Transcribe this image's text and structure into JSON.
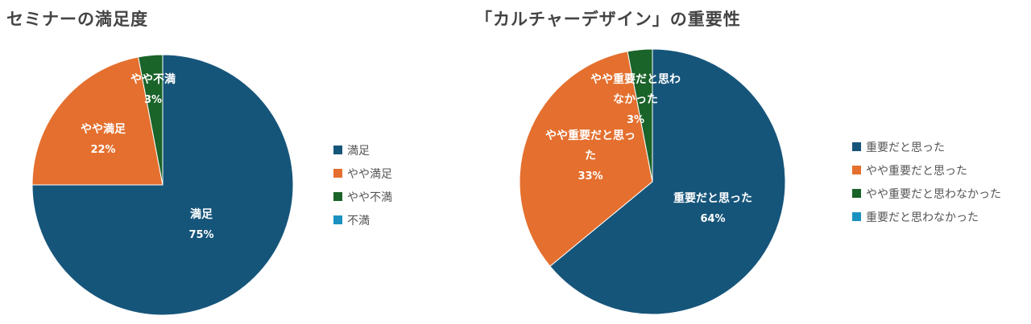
{
  "chart_data": [
    {
      "type": "pie",
      "title": "セミナーの満足度",
      "categories": [
        "満足",
        "やや満足",
        "やや不満",
        "不満"
      ],
      "values": [
        75,
        22,
        3,
        0
      ],
      "value_labels": [
        "75%",
        "22%",
        "3%",
        ""
      ],
      "slice_labels": [
        [
          "満足"
        ],
        [
          "やや満足"
        ],
        [
          "やや不満"
        ],
        []
      ],
      "colors": [
        "#16557a",
        "#e46f2e",
        "#1a6329",
        "#1b91c1"
      ],
      "legend_position": "right"
    },
    {
      "type": "pie",
      "title": "「カルチャーデザイン」の重要性",
      "categories": [
        "重要だと思った",
        "やや重要だと思った",
        "やや重要だと思わなかった",
        "重要だと思わなかった"
      ],
      "values": [
        64,
        33,
        3,
        0
      ],
      "value_labels": [
        "64%",
        "33%",
        "3%",
        ""
      ],
      "slice_labels": [
        [
          "重要だと思った"
        ],
        [
          "やや重要だと思っ",
          "た"
        ],
        [
          "やや重要だと思わ",
          "なかった"
        ],
        []
      ],
      "colors": [
        "#16557a",
        "#e46f2e",
        "#1a6329",
        "#1b91c1"
      ],
      "legend_position": "right"
    }
  ]
}
